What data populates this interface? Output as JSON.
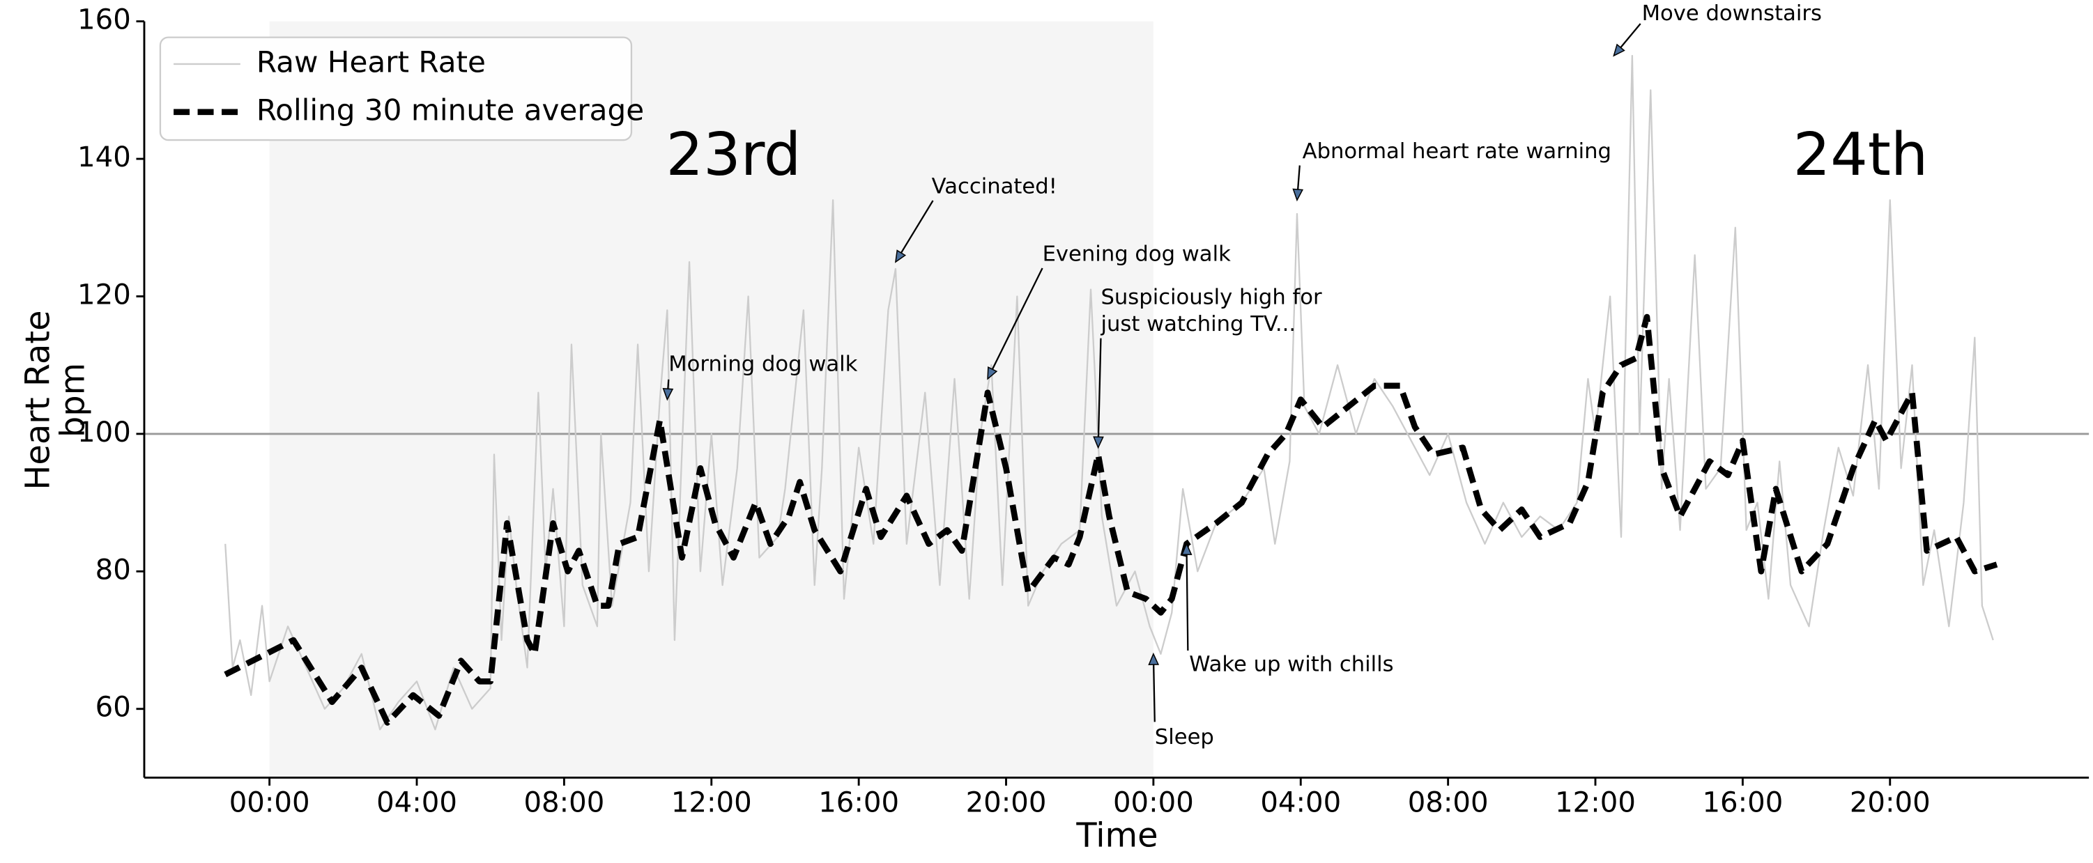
{
  "chart_data": {
    "type": "line",
    "xlabel": "Time",
    "ylabel": [
      "Heart Rate",
      "bpm"
    ],
    "xlim": [
      -3.4,
      49.4
    ],
    "ylim": [
      50,
      160
    ],
    "xticks": [
      {
        "value": 0,
        "label": "00:00"
      },
      {
        "value": 4,
        "label": "04:00"
      },
      {
        "value": 8,
        "label": "08:00"
      },
      {
        "value": 12,
        "label": "12:00"
      },
      {
        "value": 16,
        "label": "16:00"
      },
      {
        "value": 20,
        "label": "20:00"
      },
      {
        "value": 24,
        "label": "00:00"
      },
      {
        "value": 28,
        "label": "04:00"
      },
      {
        "value": 32,
        "label": "08:00"
      },
      {
        "value": 36,
        "label": "12:00"
      },
      {
        "value": 40,
        "label": "16:00"
      },
      {
        "value": 44,
        "label": "20:00"
      }
    ],
    "yticks": [
      60,
      80,
      100,
      120,
      140,
      160
    ],
    "shaded_span": [
      0,
      24
    ],
    "hline": 100,
    "legend": "upper left",
    "series": [
      {
        "name": "Raw Heart Rate",
        "color": "#cccccc",
        "x": [
          -1.2,
          -1.0,
          -0.8,
          -0.5,
          -0.2,
          0,
          0.5,
          1.0,
          1.5,
          2.0,
          2.5,
          3.0,
          3.5,
          4.0,
          4.5,
          5.0,
          5.5,
          6.0,
          6.1,
          6.3,
          6.5,
          6.7,
          7.0,
          7.3,
          7.5,
          7.7,
          8.0,
          8.2,
          8.5,
          8.9,
          9.0,
          9.3,
          9.8,
          10.0,
          10.3,
          10.6,
          10.8,
          11.0,
          11.4,
          11.7,
          12.0,
          12.3,
          12.7,
          13.0,
          13.3,
          13.8,
          14.0,
          14.5,
          14.8,
          15.0,
          15.3,
          15.6,
          16.0,
          16.4,
          16.8,
          17.0,
          17.3,
          17.8,
          18.2,
          18.6,
          19.0,
          19.3,
          19.6,
          19.9,
          20.3,
          20.6,
          21.0,
          21.5,
          22.0,
          22.3,
          22.6,
          23.0,
          23.5,
          23.9,
          24.2,
          24.5,
          24.8,
          25.2,
          25.7,
          26.4,
          27.0,
          27.3,
          27.7,
          27.9,
          28.1,
          28.5,
          29.0,
          29.5,
          30.0,
          30.5,
          31.0,
          31.5,
          32.0,
          32.5,
          33.0,
          33.5,
          34.0,
          34.5,
          35.0,
          35.5,
          35.8,
          36.0,
          36.4,
          36.7,
          37.0,
          37.2,
          37.5,
          37.8,
          38.0,
          38.3,
          38.7,
          39.0,
          39.4,
          39.8,
          40.1,
          40.4,
          40.7,
          41.0,
          41.3,
          41.8,
          42.2,
          42.6,
          43.0,
          43.4,
          43.7,
          44.0,
          44.3,
          44.6,
          44.9,
          45.2,
          45.6,
          46.0,
          46.3,
          46.5,
          46.8
        ],
        "values": [
          84,
          66,
          70,
          62,
          75,
          64,
          72,
          66,
          60,
          63,
          68,
          57,
          61,
          64,
          57,
          66,
          60,
          63,
          97,
          70,
          88,
          78,
          66,
          106,
          80,
          92,
          72,
          113,
          78,
          72,
          100,
          75,
          90,
          113,
          80,
          105,
          118,
          70,
          125,
          80,
          100,
          78,
          95,
          120,
          82,
          85,
          92,
          118,
          78,
          95,
          134,
          76,
          98,
          84,
          118,
          124,
          84,
          106,
          78,
          108,
          76,
          100,
          110,
          78,
          120,
          75,
          80,
          84,
          86,
          121,
          88,
          75,
          80,
          72,
          68,
          74,
          92,
          80,
          87,
          90,
          95,
          84,
          96,
          132,
          104,
          100,
          110,
          100,
          108,
          104,
          99,
          94,
          100,
          90,
          84,
          90,
          85,
          88,
          86,
          90,
          108,
          100,
          120,
          85,
          155,
          100,
          150,
          92,
          108,
          86,
          126,
          92,
          95,
          130,
          86,
          90,
          76,
          96,
          78,
          72,
          86,
          98,
          91,
          110,
          92,
          134,
          95,
          110,
          78,
          86,
          72,
          90,
          114,
          75,
          70
        ]
      },
      {
        "name": "Rolling 30 minute average",
        "color": "#000000",
        "x": [
          -1.2,
          0.65,
          1.7,
          2.5,
          3.2,
          3.9,
          4.6,
          5.2,
          5.7,
          6.0,
          6.45,
          7.0,
          7.2,
          7.7,
          8.1,
          8.4,
          8.9,
          9.2,
          9.5,
          10.0,
          10.6,
          11.2,
          11.7,
          12.1,
          12.6,
          13.2,
          13.6,
          14.1,
          14.4,
          14.8,
          15.5,
          16.2,
          16.6,
          17.3,
          17.9,
          18.4,
          18.8,
          19.5,
          20.0,
          20.6,
          21.3,
          21.7,
          22.0,
          22.5,
          22.8,
          23.3,
          23.8,
          24.2,
          24.5,
          24.9,
          25.7,
          26.4,
          27.1,
          27.6,
          28.0,
          28.6,
          29.3,
          30.0,
          30.7,
          31.1,
          31.6,
          32.4,
          32.9,
          33.4,
          34.0,
          34.5,
          35.3,
          35.8,
          36.2,
          36.7,
          37.1,
          37.4,
          37.8,
          38.3,
          39.1,
          39.6,
          40.0,
          40.5,
          40.9,
          41.6,
          42.3,
          43.0,
          43.6,
          43.9,
          44.6,
          45.0,
          45.8,
          46.3,
          46.9
        ],
        "values": [
          65,
          70,
          61,
          66,
          58,
          62,
          59,
          67,
          64,
          64,
          87,
          70,
          68,
          87,
          80,
          83,
          75,
          75,
          84,
          85,
          102,
          82,
          95,
          87,
          82,
          90,
          84,
          88,
          93,
          86,
          80,
          92,
          85,
          91,
          84,
          86,
          83,
          106,
          95,
          77,
          82,
          81,
          85,
          97,
          88,
          77,
          76,
          74,
          76,
          84,
          87,
          90,
          97,
          100,
          105,
          101,
          104,
          107,
          107,
          101,
          97,
          98,
          89,
          86,
          89,
          85,
          87,
          93,
          106,
          110,
          111,
          117,
          95,
          88,
          96,
          94,
          99,
          80,
          92,
          80,
          84,
          95,
          102,
          99,
          106,
          83,
          85,
          80,
          81
        ]
      }
    ],
    "day_labels": [
      {
        "text": "23rd",
        "x": 12.6,
        "y": 140
      },
      {
        "text": "24th",
        "x": 43.2,
        "y": 140
      }
    ],
    "annotations": [
      {
        "text": [
          "Morning dog walk"
        ],
        "x": 10.8,
        "y": 105
      },
      {
        "text": [
          "Vaccinated!"
        ],
        "x": 17.0,
        "y": 125
      },
      {
        "text": [
          "Evening dog walk"
        ],
        "x": 19.5,
        "y": 108
      },
      {
        "text": [
          "Suspiciously high for",
          "just watching TV..."
        ],
        "x": 22.5,
        "y": 98
      },
      {
        "text": [
          "Sleep"
        ],
        "x": 24.0,
        "y": 68
      },
      {
        "text": [
          "Wake up with chills"
        ],
        "x": 24.9,
        "y": 84
      },
      {
        "text": [
          "Abnormal heart rate warning"
        ],
        "x": 27.9,
        "y": 134
      },
      {
        "text": [
          "Move downstairs"
        ],
        "x": 36.5,
        "y": 155
      }
    ]
  }
}
